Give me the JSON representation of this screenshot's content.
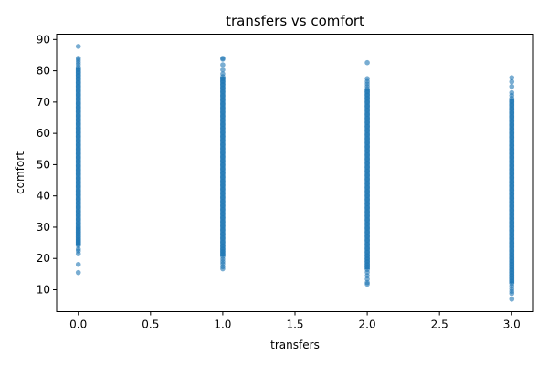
{
  "chart_data": {
    "type": "scatter",
    "title": "transfers vs comfort",
    "xlabel": "transfers",
    "ylabel": "comfort",
    "xlim": [
      -0.15,
      3.15
    ],
    "ylim": [
      3.0,
      91.7
    ],
    "xticks": [
      0.0,
      0.5,
      1.0,
      1.5,
      2.0,
      2.5,
      3.0
    ],
    "xtick_labels": [
      "0.0",
      "0.5",
      "1.0",
      "1.5",
      "2.0",
      "2.5",
      "3.0"
    ],
    "yticks": [
      10,
      20,
      30,
      40,
      50,
      60,
      70,
      80,
      90
    ],
    "ytick_labels": [
      "10",
      "20",
      "30",
      "40",
      "50",
      "60",
      "70",
      "80",
      "90"
    ],
    "grid": false,
    "point_color": "#1f77b4",
    "series": [
      {
        "x": 0,
        "y": [
          15.5,
          18.1,
          21.5,
          22.4,
          23.0,
          24.1,
          24.5,
          25.1,
          25.6,
          26.2,
          27.0,
          27.8,
          28.5,
          29.3,
          30.0,
          31.2,
          32.5,
          33.8,
          35.0,
          36.4,
          37.7,
          39.0,
          40.3,
          41.6,
          43.0,
          44.3,
          45.6,
          47.0,
          48.3,
          49.6,
          51.0,
          52.3,
          53.6,
          55.0,
          56.3,
          57.6,
          59.0,
          60.3,
          61.6,
          63.0,
          64.3,
          65.6,
          67.0,
          68.3,
          69.6,
          71.0,
          72.3,
          73.6,
          75.0,
          76.2,
          77.4,
          78.5,
          79.5,
          80.4,
          81.2,
          82.0,
          82.7,
          83.4,
          84.0,
          87.8
        ]
      },
      {
        "x": 1,
        "y": [
          16.7,
          17.4,
          18.3,
          19.0,
          19.8,
          20.6,
          21.4,
          22.2,
          23.0,
          24.0,
          25.2,
          26.5,
          27.8,
          29.1,
          30.4,
          31.7,
          33.0,
          34.3,
          35.6,
          36.9,
          38.2,
          39.5,
          40.8,
          42.1,
          43.4,
          44.7,
          46.0,
          47.3,
          48.6,
          49.9,
          51.2,
          52.5,
          53.8,
          55.1,
          56.4,
          57.7,
          59.0,
          60.3,
          61.6,
          62.9,
          64.2,
          65.5,
          66.8,
          68.1,
          69.4,
          70.7,
          72.0,
          73.3,
          74.5,
          75.6,
          76.6,
          77.4,
          78.1,
          79.0,
          80.3,
          81.9,
          83.7,
          84.0
        ]
      },
      {
        "x": 2,
        "y": [
          11.8,
          12.3,
          13.4,
          14.5,
          15.6,
          16.5,
          17.3,
          18.1,
          19.0,
          19.9,
          20.9,
          22.0,
          23.2,
          24.5,
          25.8,
          27.1,
          28.4,
          29.7,
          31.0,
          32.3,
          33.6,
          34.9,
          36.2,
          37.5,
          38.8,
          40.1,
          41.4,
          42.7,
          44.0,
          45.3,
          46.6,
          47.9,
          49.2,
          50.5,
          51.8,
          53.1,
          54.4,
          55.7,
          57.0,
          58.3,
          59.6,
          60.9,
          62.2,
          63.5,
          64.8,
          66.1,
          67.4,
          68.7,
          70.0,
          71.2,
          72.3,
          73.3,
          74.2,
          75.0,
          75.8,
          76.6,
          77.5,
          82.6
        ]
      },
      {
        "x": 3,
        "y": [
          7.0,
          8.8,
          9.5,
          10.3,
          11.2,
          12.0,
          12.8,
          13.7,
          14.6,
          15.5,
          16.4,
          17.3,
          18.2,
          19.1,
          20.1,
          21.2,
          22.4,
          23.7,
          25.0,
          26.3,
          27.6,
          28.9,
          30.2,
          31.5,
          32.8,
          34.1,
          35.4,
          36.7,
          38.0,
          39.3,
          40.6,
          41.9,
          43.2,
          44.5,
          45.8,
          47.1,
          48.4,
          49.7,
          51.0,
          52.3,
          53.6,
          54.9,
          56.2,
          57.5,
          58.8,
          60.1,
          61.4,
          62.7,
          64.0,
          65.3,
          66.6,
          67.9,
          69.1,
          70.2,
          71.2,
          72.1,
          73.0,
          75.0,
          76.5,
          77.8
        ]
      }
    ]
  }
}
